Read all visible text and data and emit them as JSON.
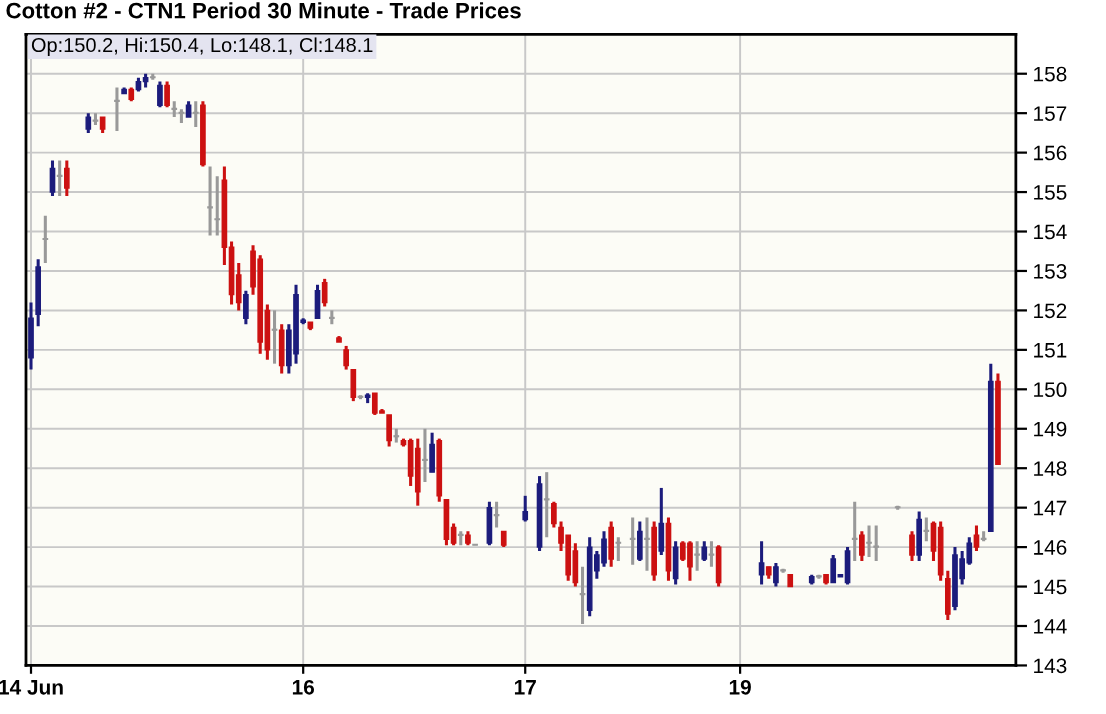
{
  "chart_data": {
    "type": "candlestick",
    "title": "Cotton #2 - CTN1 Period 30 Minute - Trade Prices",
    "annotations": [
      "Op:150.2, Hi:150.4, Lo:148.1, Cl:148.1"
    ],
    "categories": [
      "14 Jun",
      null,
      null,
      null,
      null,
      null,
      null,
      null,
      null,
      null,
      null,
      null,
      null,
      null,
      null,
      null,
      null,
      null,
      null,
      null,
      null,
      null,
      null,
      null,
      null,
      null,
      null,
      null,
      null,
      null,
      null,
      null,
      null,
      null,
      null,
      null,
      null,
      null,
      "16",
      null,
      null,
      null,
      null,
      null,
      null,
      null,
      null,
      null,
      null,
      null,
      null,
      null,
      null,
      null,
      null,
      null,
      null,
      null,
      null,
      null,
      null,
      null,
      null,
      null,
      null,
      null,
      null,
      null,
      null,
      "17",
      null,
      null,
      null,
      null,
      null,
      null,
      null,
      null,
      null,
      null,
      null,
      null,
      null,
      null,
      null,
      null,
      null,
      null,
      null,
      null,
      null,
      null,
      null,
      null,
      null,
      null,
      null,
      null,
      null,
      "19",
      null,
      null,
      null,
      null,
      null,
      null,
      null,
      null,
      null,
      null,
      null,
      null,
      null,
      null,
      null,
      null,
      null,
      null,
      null,
      null,
      null,
      null,
      null,
      null,
      null,
      null,
      null,
      null,
      null,
      null,
      null,
      null,
      null,
      null,
      null,
      null
    ],
    "ohlc": [
      [
        150.8,
        152.2,
        150.5,
        151.8
      ],
      [
        151.9,
        153.3,
        151.6,
        153.1
      ],
      [
        153.8,
        154.4,
        153.2,
        153.8
      ],
      [
        155.0,
        155.8,
        154.9,
        155.6
      ],
      [
        155.4,
        155.8,
        154.9,
        155.4
      ],
      [
        155.6,
        155.8,
        154.9,
        155.1
      ],
      null,
      null,
      [
        156.6,
        157.0,
        156.5,
        156.9
      ],
      [
        156.8,
        157.0,
        156.7,
        156.8
      ],
      [
        156.9,
        156.9,
        156.5,
        156.6
      ],
      null,
      [
        157.3,
        157.65,
        156.55,
        157.3
      ],
      [
        157.5,
        157.65,
        157.5,
        157.6
      ],
      [
        157.6,
        157.65,
        157.3,
        157.35
      ],
      [
        157.6,
        157.9,
        157.55,
        157.8
      ],
      [
        157.8,
        158.0,
        157.65,
        157.9
      ],
      [
        157.9,
        158.0,
        157.85,
        157.9
      ],
      [
        157.2,
        157.8,
        157.15,
        157.7
      ],
      [
        157.7,
        157.8,
        157.15,
        157.2
      ],
      [
        157.1,
        157.3,
        156.9,
        157.1
      ],
      [
        157.0,
        157.1,
        156.75,
        157.0
      ],
      [
        156.9,
        157.3,
        156.9,
        157.2
      ],
      [
        157.0,
        157.3,
        156.65,
        157.0
      ],
      [
        157.2,
        157.3,
        155.65,
        155.7
      ],
      [
        154.6,
        155.65,
        153.9,
        154.6
      ],
      [
        154.3,
        155.4,
        153.9,
        154.3
      ],
      [
        155.3,
        155.65,
        153.15,
        153.6
      ],
      [
        153.6,
        153.75,
        152.15,
        152.4
      ],
      [
        152.9,
        153.2,
        152.0,
        152.2
      ],
      [
        151.8,
        152.5,
        151.65,
        152.4
      ],
      [
        153.5,
        153.65,
        152.4,
        152.6
      ],
      [
        153.3,
        153.4,
        150.9,
        151.2
      ],
      [
        152.0,
        152.15,
        150.75,
        151.0
      ],
      [
        151.5,
        152.0,
        150.65,
        151.5
      ],
      [
        151.5,
        151.65,
        150.4,
        150.6
      ],
      [
        150.6,
        151.65,
        150.4,
        151.5
      ],
      [
        150.9,
        152.65,
        150.65,
        152.4
      ],
      [
        151.7,
        151.8,
        151.65,
        151.75
      ],
      [
        151.7,
        151.7,
        151.5,
        151.55
      ],
      [
        151.8,
        152.65,
        151.8,
        152.5
      ],
      [
        152.7,
        152.8,
        152.1,
        152.2
      ],
      [
        151.8,
        152.0,
        151.65,
        151.8
      ],
      [
        151.3,
        151.35,
        151.2,
        151.2
      ],
      [
        151.0,
        151.1,
        150.5,
        150.6
      ],
      [
        150.5,
        150.5,
        149.7,
        149.8
      ],
      [
        149.8,
        149.85,
        149.75,
        149.8
      ],
      [
        149.8,
        149.9,
        149.65,
        149.85
      ],
      [
        149.9,
        149.9,
        149.35,
        149.4
      ],
      [
        149.45,
        149.5,
        149.4,
        149.4
      ],
      [
        149.35,
        149.35,
        148.55,
        148.7
      ],
      [
        148.8,
        149.0,
        148.65,
        148.8
      ],
      [
        148.7,
        148.75,
        148.55,
        148.6
      ],
      [
        148.7,
        148.75,
        147.55,
        147.8
      ],
      [
        148.5,
        148.75,
        147.05,
        147.4
      ],
      [
        148.2,
        149.0,
        147.65,
        148.2
      ],
      [
        147.9,
        148.9,
        147.9,
        148.6
      ],
      [
        148.7,
        148.75,
        147.15,
        147.3
      ],
      [
        147.2,
        147.2,
        146.05,
        146.2
      ],
      [
        146.5,
        146.6,
        146.05,
        146.1
      ],
      [
        146.3,
        146.4,
        146.05,
        146.3
      ],
      [
        146.3,
        146.4,
        146.05,
        146.1
      ],
      [
        146.05,
        146.05,
        146.05,
        146.05
      ],
      null,
      [
        146.1,
        147.15,
        146.05,
        147.0
      ],
      [
        146.8,
        147.15,
        146.5,
        146.8
      ],
      [
        146.4,
        146.4,
        146.0,
        146.05
      ],
      null,
      null,
      [
        146.7,
        147.3,
        146.65,
        146.9
      ],
      null,
      [
        146.0,
        147.8,
        145.9,
        147.6
      ],
      [
        147.2,
        147.9,
        146.25,
        147.2
      ],
      [
        147.1,
        147.15,
        146.5,
        146.6
      ],
      [
        146.5,
        146.65,
        145.9,
        146.1
      ],
      [
        146.3,
        146.3,
        145.15,
        145.3
      ],
      [
        145.9,
        146.1,
        145.0,
        145.1
      ],
      [
        144.8,
        145.5,
        144.05,
        144.8
      ],
      [
        144.4,
        146.25,
        144.25,
        146.0
      ],
      [
        145.4,
        145.9,
        145.2,
        145.8
      ],
      [
        145.6,
        146.4,
        145.5,
        146.2
      ],
      [
        146.5,
        146.65,
        145.5,
        145.7
      ],
      [
        146.1,
        146.25,
        145.65,
        146.1
      ],
      null,
      [
        146.2,
        146.75,
        145.55,
        146.2
      ],
      [
        145.7,
        146.65,
        145.65,
        146.4
      ],
      [
        146.2,
        146.75,
        145.4,
        146.2
      ],
      [
        146.5,
        146.65,
        145.15,
        145.3
      ],
      [
        145.9,
        147.5,
        145.8,
        146.6
      ],
      [
        146.6,
        146.75,
        145.15,
        145.4
      ],
      [
        145.2,
        146.15,
        145.05,
        146.0
      ],
      [
        146.1,
        146.15,
        145.65,
        145.7
      ],
      [
        146.1,
        146.15,
        145.15,
        145.5
      ],
      [
        145.8,
        146.15,
        145.4,
        145.8
      ],
      [
        145.7,
        146.15,
        145.65,
        146.0
      ],
      [
        145.8,
        146.15,
        145.5,
        145.8
      ],
      [
        146.0,
        146.05,
        145.0,
        145.1
      ],
      null,
      null,
      null,
      null,
      null,
      [
        145.3,
        146.15,
        145.05,
        145.6
      ],
      [
        145.5,
        145.5,
        145.2,
        145.3
      ],
      [
        145.1,
        145.6,
        145.0,
        145.5
      ],
      [
        145.4,
        145.45,
        145.35,
        145.4
      ],
      [
        145.3,
        145.3,
        145.0,
        145.0
      ],
      null,
      null,
      [
        145.1,
        145.3,
        145.05,
        145.25
      ],
      [
        145.25,
        145.3,
        145.2,
        145.25
      ],
      [
        145.3,
        145.3,
        145.05,
        145.1
      ],
      [
        145.1,
        145.8,
        145.1,
        145.7
      ],
      [
        145.25,
        145.3,
        145.25,
        145.3
      ],
      [
        145.1,
        146.0,
        145.05,
        145.9
      ],
      [
        146.2,
        147.15,
        145.65,
        146.2
      ],
      [
        146.3,
        146.4,
        145.65,
        145.8
      ],
      [
        146.1,
        146.55,
        145.75,
        146.1
      ],
      [
        146.0,
        146.55,
        145.65,
        146.0
      ],
      null,
      null,
      [
        147.0,
        147.05,
        146.95,
        147.0
      ],
      null,
      [
        146.3,
        146.4,
        145.65,
        145.8
      ],
      [
        145.8,
        146.9,
        145.65,
        146.7
      ],
      [
        146.4,
        146.75,
        146.15,
        146.4
      ],
      [
        146.6,
        146.65,
        145.65,
        145.9
      ],
      [
        146.5,
        146.65,
        145.15,
        145.3
      ],
      [
        145.2,
        145.4,
        144.15,
        144.3
      ],
      [
        144.5,
        146.0,
        144.4,
        145.8
      ],
      [
        145.2,
        145.9,
        145.05,
        145.7
      ],
      [
        145.6,
        146.25,
        145.55,
        146.1
      ],
      [
        146.3,
        146.55,
        145.9,
        146.0
      ],
      [
        146.2,
        146.4,
        146.15,
        146.2
      ],
      [
        146.4,
        150.65,
        146.4,
        150.2
      ],
      [
        150.2,
        150.4,
        148.1,
        148.1
      ]
    ],
    "colors": [
      "#1c1c7c",
      "#1c1c7c",
      "#999999",
      "#1c1c7c",
      "#999999",
      "#cc1111",
      null,
      null,
      "#1c1c7c",
      "#999999",
      "#cc1111",
      null,
      "#999999",
      "#1c1c7c",
      "#cc1111",
      "#1c1c7c",
      "#1c1c7c",
      "#999999",
      "#1c1c7c",
      "#cc1111",
      "#999999",
      "#999999",
      "#1c1c7c",
      "#999999",
      "#cc1111",
      "#999999",
      "#999999",
      "#cc1111",
      "#cc1111",
      "#cc1111",
      "#1c1c7c",
      "#cc1111",
      "#cc1111",
      "#cc1111",
      "#999999",
      "#cc1111",
      "#1c1c7c",
      "#1c1c7c",
      "#1c1c7c",
      "#cc1111",
      "#1c1c7c",
      "#cc1111",
      "#999999",
      "#cc1111",
      "#cc1111",
      "#cc1111",
      "#999999",
      "#1c1c7c",
      "#cc1111",
      "#cc1111",
      "#cc1111",
      "#999999",
      "#cc1111",
      "#cc1111",
      "#cc1111",
      "#999999",
      "#1c1c7c",
      "#cc1111",
      "#cc1111",
      "#cc1111",
      "#999999",
      "#cc1111",
      "#999999",
      null,
      "#1c1c7c",
      "#999999",
      "#cc1111",
      null,
      null,
      "#1c1c7c",
      null,
      "#1c1c7c",
      "#999999",
      "#cc1111",
      "#cc1111",
      "#cc1111",
      "#cc1111",
      "#999999",
      "#1c1c7c",
      "#1c1c7c",
      "#1c1c7c",
      "#cc1111",
      "#999999",
      null,
      "#999999",
      "#1c1c7c",
      "#999999",
      "#cc1111",
      "#1c1c7c",
      "#cc1111",
      "#1c1c7c",
      "#cc1111",
      "#cc1111",
      "#999999",
      "#1c1c7c",
      "#999999",
      "#cc1111",
      null,
      null,
      null,
      null,
      null,
      "#1c1c7c",
      "#cc1111",
      "#1c1c7c",
      "#999999",
      "#cc1111",
      null,
      null,
      "#1c1c7c",
      "#999999",
      "#cc1111",
      "#1c1c7c",
      "#1c1c7c",
      "#1c1c7c",
      "#999999",
      "#cc1111",
      "#999999",
      "#999999",
      null,
      null,
      "#999999",
      null,
      "#cc1111",
      "#1c1c7c",
      "#999999",
      "#cc1111",
      "#cc1111",
      "#cc1111",
      "#1c1c7c",
      "#1c1c7c",
      "#1c1c7c",
      "#cc1111",
      "#999999",
      "#1c1c7c",
      "#cc1111"
    ],
    "ylim": [
      143,
      159
    ],
    "yticks": [
      143,
      144,
      145,
      146,
      147,
      148,
      149,
      150,
      151,
      152,
      153,
      154,
      155,
      156,
      157,
      158
    ],
    "grid": true
  }
}
